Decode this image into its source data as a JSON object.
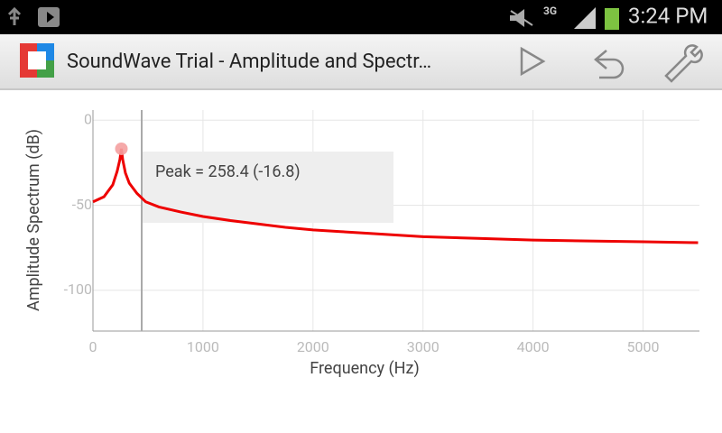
{
  "status_bar": {
    "network": "3G",
    "time": "3:24 PM"
  },
  "action_bar": {
    "title": "SoundWave Trial - Amplitude and Spectr…"
  },
  "chart_data": {
    "type": "line",
    "x_label": "Frequency (Hz)",
    "y_label": "Amplitude Spectrum (dB)",
    "annotation": "Peak = 258.4 (-16.8)",
    "peak": {
      "x": 258.4,
      "y": -16.8
    },
    "xlim": [
      0,
      5512.5
    ],
    "ylim": [
      -124,
      6
    ],
    "xticks": [
      0,
      1000,
      2000,
      3000,
      4000,
      5000
    ],
    "yticks": [
      0,
      -50,
      -100
    ],
    "grid": true,
    "series": [
      {
        "color": "#ee0000",
        "x": [
          0,
          100,
          180,
          220,
          245,
          258.4,
          270,
          295,
          330,
          400,
          480,
          600,
          800,
          1000,
          1250,
          1500,
          1750,
          2000,
          2250,
          2500,
          2750,
          3000,
          3500,
          4000,
          4500,
          5000,
          5500
        ],
        "values": [
          -48,
          -45,
          -38,
          -30,
          -23,
          -16.8,
          -23,
          -31,
          -37,
          -43,
          -48,
          -51,
          -54,
          -56.6,
          -59,
          -61,
          -63,
          -64.5,
          -65.5,
          -66.5,
          -67.5,
          -68.5,
          -69.5,
          -70.5,
          -71,
          -71.5,
          -72
        ]
      }
    ]
  }
}
